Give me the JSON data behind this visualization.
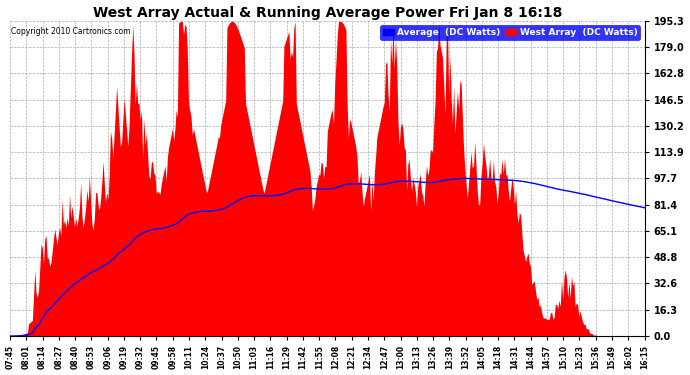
{
  "title": "West Array Actual & Running Average Power Fri Jan 8 16:18",
  "copyright": "Copyright 2010 Cartronics.com",
  "legend_labels": [
    "Average  (DC Watts)",
    "West Array  (DC Watts)"
  ],
  "legend_colors": [
    "blue",
    "red"
  ],
  "yticks": [
    0.0,
    16.3,
    32.6,
    48.8,
    65.1,
    81.4,
    97.7,
    113.9,
    130.2,
    146.5,
    162.8,
    179.0,
    195.3
  ],
  "ymax": 195.3,
  "ymin": 0.0,
  "background_color": "#ffffff",
  "plot_bg_color": "#ffffff",
  "grid_color": "#aaaaaa",
  "bar_color": "red",
  "line_color": "blue",
  "xtick_labels": [
    "07:45",
    "08:01",
    "08:14",
    "08:27",
    "08:40",
    "08:53",
    "09:06",
    "09:19",
    "09:32",
    "09:45",
    "09:58",
    "10:11",
    "10:24",
    "10:37",
    "10:50",
    "11:03",
    "11:16",
    "11:29",
    "11:42",
    "11:55",
    "12:08",
    "12:21",
    "12:34",
    "12:47",
    "13:00",
    "13:13",
    "13:26",
    "13:39",
    "13:52",
    "14:05",
    "14:18",
    "14:31",
    "14:44",
    "14:57",
    "15:10",
    "15:23",
    "15:36",
    "15:49",
    "16:02",
    "16:15"
  ]
}
